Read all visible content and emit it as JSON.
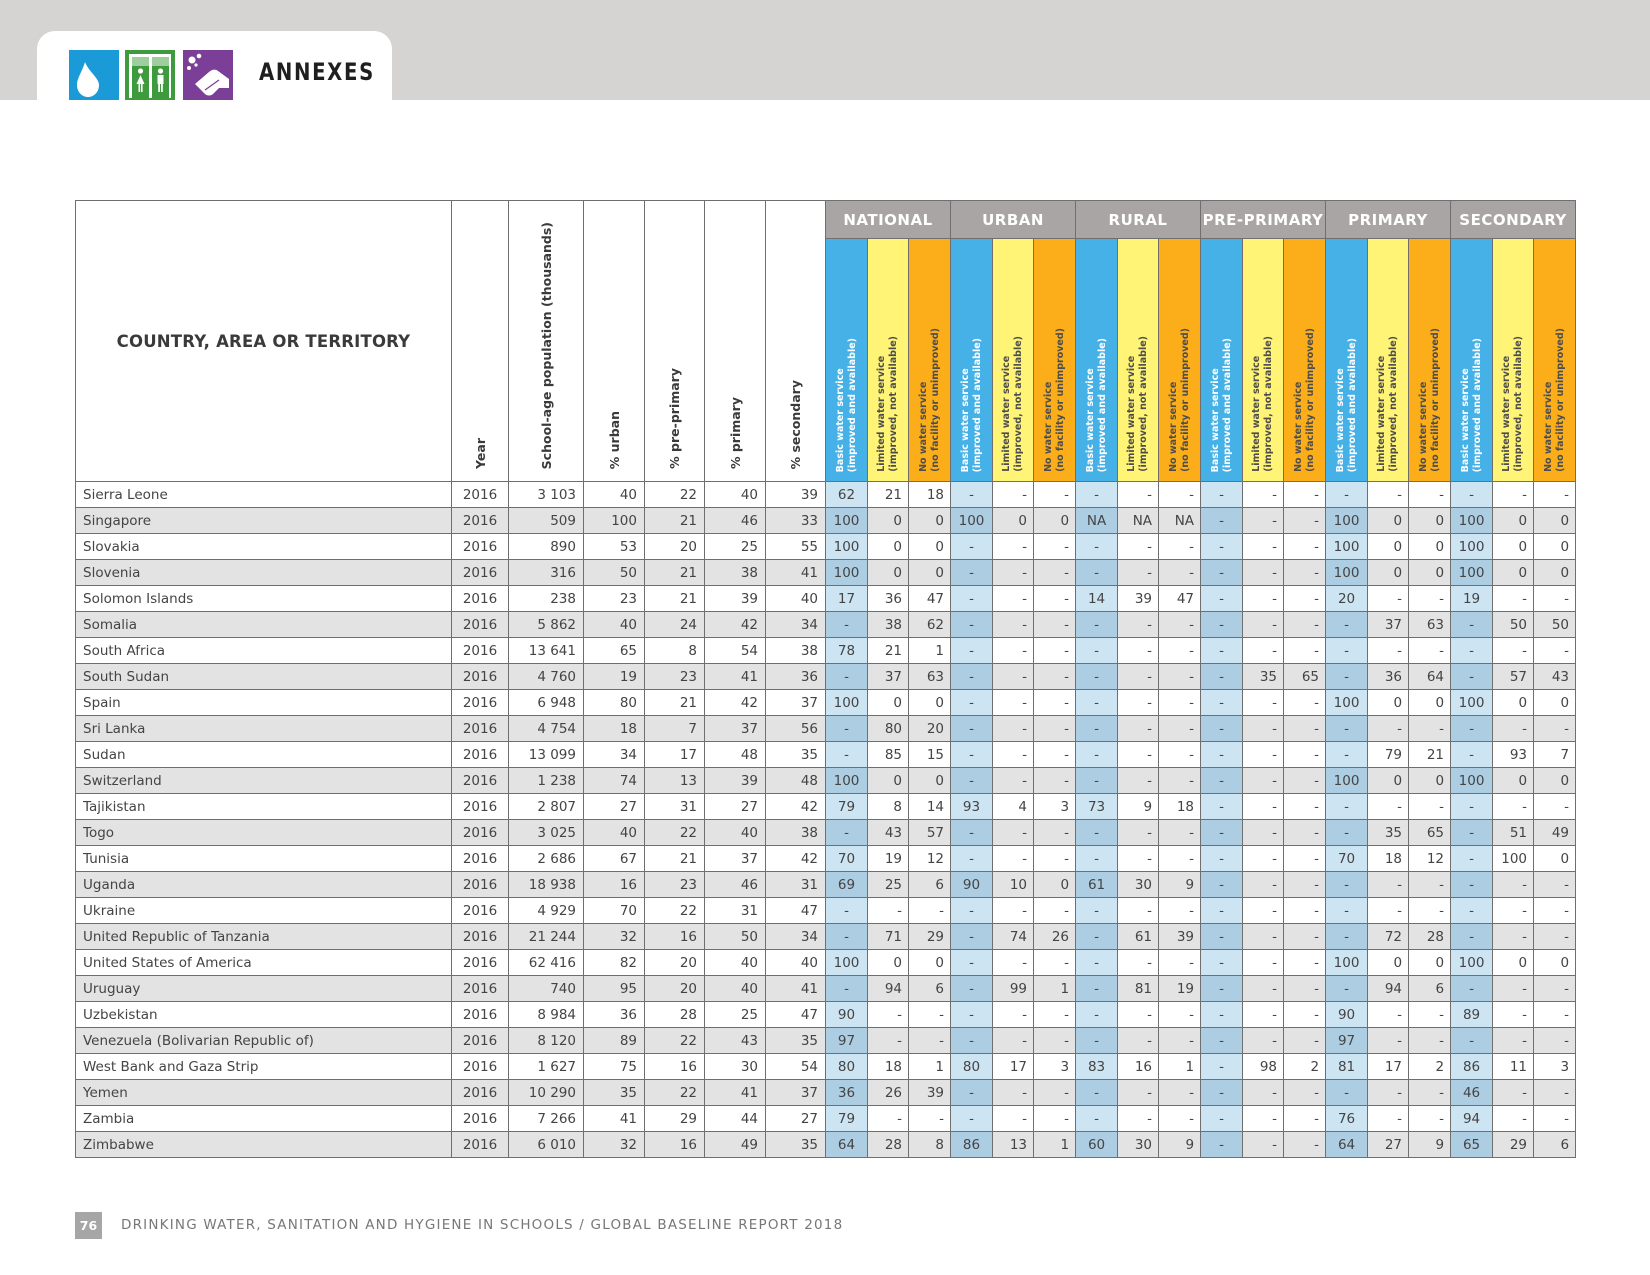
{
  "header": {
    "title": "ANNEXES",
    "icons": [
      "water-drop-icon",
      "toilet-icon",
      "handwashing-icon"
    ],
    "colors": {
      "band": "#d6d3d3",
      "water": "#1a9ad6",
      "sanitation": "#3d9a3d",
      "hygiene": "#7b3f98"
    }
  },
  "table": {
    "country_header": "COUNTRY, AREA OR TERRITORY",
    "columns": {
      "year": "Year",
      "population": "School-age population (thousands)",
      "urban": "% urban",
      "preprimary": "% pre-primary",
      "primary": "% primary",
      "secondary": "% secondary"
    },
    "groups": [
      "NATIONAL",
      "URBAN",
      "RURAL",
      "PRE-PRIMARY",
      "PRIMARY",
      "SECONDARY"
    ],
    "subheaders": {
      "basic_1": "Basic water service",
      "basic_2": "(improved and available)",
      "limited_1": "Limited water service",
      "limited_2": "(improved, not available)",
      "none_1": "No water service",
      "none_2": "(no facility or unimproved)"
    },
    "service_colors": {
      "basic": "#46b1e6",
      "limited": "#fff476",
      "none": "#fbae1a",
      "group": "#a9a5a5"
    },
    "rows": [
      [
        "Sierra Leone",
        "2016",
        "3 103",
        "40",
        "22",
        "40",
        "39",
        "62",
        "21",
        "18",
        "-",
        "-",
        "-",
        "-",
        "-",
        "-",
        "-",
        "-",
        "-",
        "-",
        "-",
        "-",
        "-",
        "-",
        "-"
      ],
      [
        "Singapore",
        "2016",
        "509",
        "100",
        "21",
        "46",
        "33",
        "100",
        "0",
        "0",
        "100",
        "0",
        "0",
        "NA",
        "NA",
        "NA",
        "-",
        "-",
        "-",
        "100",
        "0",
        "0",
        "100",
        "0",
        "0"
      ],
      [
        "Slovakia",
        "2016",
        "890",
        "53",
        "20",
        "25",
        "55",
        "100",
        "0",
        "0",
        "-",
        "-",
        "-",
        "-",
        "-",
        "-",
        "-",
        "-",
        "-",
        "100",
        "0",
        "0",
        "100",
        "0",
        "0"
      ],
      [
        "Slovenia",
        "2016",
        "316",
        "50",
        "21",
        "38",
        "41",
        "100",
        "0",
        "0",
        "-",
        "-",
        "-",
        "-",
        "-",
        "-",
        "-",
        "-",
        "-",
        "100",
        "0",
        "0",
        "100",
        "0",
        "0"
      ],
      [
        "Solomon Islands",
        "2016",
        "238",
        "23",
        "21",
        "39",
        "40",
        "17",
        "36",
        "47",
        "-",
        "-",
        "-",
        "14",
        "39",
        "47",
        "-",
        "-",
        "-",
        "20",
        "-",
        "-",
        "19",
        "-",
        "-"
      ],
      [
        "Somalia",
        "2016",
        "5 862",
        "40",
        "24",
        "42",
        "34",
        "-",
        "38",
        "62",
        "-",
        "-",
        "-",
        "-",
        "-",
        "-",
        "-",
        "-",
        "-",
        "-",
        "37",
        "63",
        "-",
        "50",
        "50"
      ],
      [
        "South Africa",
        "2016",
        "13 641",
        "65",
        "8",
        "54",
        "38",
        "78",
        "21",
        "1",
        "-",
        "-",
        "-",
        "-",
        "-",
        "-",
        "-",
        "-",
        "-",
        "-",
        "-",
        "-",
        "-",
        "-",
        "-"
      ],
      [
        "South Sudan",
        "2016",
        "4 760",
        "19",
        "23",
        "41",
        "36",
        "-",
        "37",
        "63",
        "-",
        "-",
        "-",
        "-",
        "-",
        "-",
        "-",
        "35",
        "65",
        "-",
        "36",
        "64",
        "-",
        "57",
        "43"
      ],
      [
        "Spain",
        "2016",
        "6 948",
        "80",
        "21",
        "42",
        "37",
        "100",
        "0",
        "0",
        "-",
        "-",
        "-",
        "-",
        "-",
        "-",
        "-",
        "-",
        "-",
        "100",
        "0",
        "0",
        "100",
        "0",
        "0"
      ],
      [
        "Sri Lanka",
        "2016",
        "4 754",
        "18",
        "7",
        "37",
        "56",
        "-",
        "80",
        "20",
        "-",
        "-",
        "-",
        "-",
        "-",
        "-",
        "-",
        "-",
        "-",
        "-",
        "-",
        "-",
        "-",
        "-",
        "-"
      ],
      [
        "Sudan",
        "2016",
        "13 099",
        "34",
        "17",
        "48",
        "35",
        "-",
        "85",
        "15",
        "-",
        "-",
        "-",
        "-",
        "-",
        "-",
        "-",
        "-",
        "-",
        "-",
        "79",
        "21",
        "-",
        "93",
        "7"
      ],
      [
        "Switzerland",
        "2016",
        "1 238",
        "74",
        "13",
        "39",
        "48",
        "100",
        "0",
        "0",
        "-",
        "-",
        "-",
        "-",
        "-",
        "-",
        "-",
        "-",
        "-",
        "100",
        "0",
        "0",
        "100",
        "0",
        "0"
      ],
      [
        "Tajikistan",
        "2016",
        "2 807",
        "27",
        "31",
        "27",
        "42",
        "79",
        "8",
        "14",
        "93",
        "4",
        "3",
        "73",
        "9",
        "18",
        "-",
        "-",
        "-",
        "-",
        "-",
        "-",
        "-",
        "-",
        "-"
      ],
      [
        "Togo",
        "2016",
        "3 025",
        "40",
        "22",
        "40",
        "38",
        "-",
        "43",
        "57",
        "-",
        "-",
        "-",
        "-",
        "-",
        "-",
        "-",
        "-",
        "-",
        "-",
        "35",
        "65",
        "-",
        "51",
        "49"
      ],
      [
        "Tunisia",
        "2016",
        "2 686",
        "67",
        "21",
        "37",
        "42",
        "70",
        "19",
        "12",
        "-",
        "-",
        "-",
        "-",
        "-",
        "-",
        "-",
        "-",
        "-",
        "70",
        "18",
        "12",
        "-",
        "100",
        "0"
      ],
      [
        "Uganda",
        "2016",
        "18 938",
        "16",
        "23",
        "46",
        "31",
        "69",
        "25",
        "6",
        "90",
        "10",
        "0",
        "61",
        "30",
        "9",
        "-",
        "-",
        "-",
        "-",
        "-",
        "-",
        "-",
        "-",
        "-"
      ],
      [
        "Ukraine",
        "2016",
        "4 929",
        "70",
        "22",
        "31",
        "47",
        "-",
        "-",
        "-",
        "-",
        "-",
        "-",
        "-",
        "-",
        "-",
        "-",
        "-",
        "-",
        "-",
        "-",
        "-",
        "-",
        "-",
        "-"
      ],
      [
        "United Republic of Tanzania",
        "2016",
        "21 244",
        "32",
        "16",
        "50",
        "34",
        "-",
        "71",
        "29",
        "-",
        "74",
        "26",
        "-",
        "61",
        "39",
        "-",
        "-",
        "-",
        "-",
        "72",
        "28",
        "-",
        "-",
        "-"
      ],
      [
        "United States of America",
        "2016",
        "62 416",
        "82",
        "20",
        "40",
        "40",
        "100",
        "0",
        "0",
        "-",
        "-",
        "-",
        "-",
        "-",
        "-",
        "-",
        "-",
        "-",
        "100",
        "0",
        "0",
        "100",
        "0",
        "0"
      ],
      [
        "Uruguay",
        "2016",
        "740",
        "95",
        "20",
        "40",
        "41",
        "-",
        "94",
        "6",
        "-",
        "99",
        "1",
        "-",
        "81",
        "19",
        "-",
        "-",
        "-",
        "-",
        "94",
        "6",
        "-",
        "-",
        "-"
      ],
      [
        "Uzbekistan",
        "2016",
        "8 984",
        "36",
        "28",
        "25",
        "47",
        "90",
        "-",
        "-",
        "-",
        "-",
        "-",
        "-",
        "-",
        "-",
        "-",
        "-",
        "-",
        "90",
        "-",
        "-",
        "89",
        "-",
        "-"
      ],
      [
        "Venezuela (Bolivarian Republic of)",
        "2016",
        "8 120",
        "89",
        "22",
        "43",
        "35",
        "97",
        "-",
        "-",
        "-",
        "-",
        "-",
        "-",
        "-",
        "-",
        "-",
        "-",
        "-",
        "97",
        "-",
        "-",
        "-",
        "-",
        "-"
      ],
      [
        "West Bank and Gaza Strip",
        "2016",
        "1 627",
        "75",
        "16",
        "30",
        "54",
        "80",
        "18",
        "1",
        "80",
        "17",
        "3",
        "83",
        "16",
        "1",
        "-",
        "98",
        "2",
        "81",
        "17",
        "2",
        "86",
        "11",
        "3"
      ],
      [
        "Yemen",
        "2016",
        "10 290",
        "35",
        "22",
        "41",
        "37",
        "36",
        "26",
        "39",
        "-",
        "-",
        "-",
        "-",
        "-",
        "-",
        "-",
        "-",
        "-",
        "-",
        "-",
        "-",
        "46",
        "-",
        "-"
      ],
      [
        "Zambia",
        "2016",
        "7 266",
        "41",
        "29",
        "44",
        "27",
        "79",
        "-",
        "-",
        "-",
        "-",
        "-",
        "-",
        "-",
        "-",
        "-",
        "-",
        "-",
        "76",
        "-",
        "-",
        "94",
        "-",
        "-"
      ],
      [
        "Zimbabwe",
        "2016",
        "6 010",
        "32",
        "16",
        "49",
        "35",
        "64",
        "28",
        "8",
        "86",
        "13",
        "1",
        "60",
        "30",
        "9",
        "-",
        "-",
        "-",
        "64",
        "27",
        "9",
        "65",
        "29",
        "6"
      ]
    ]
  },
  "footer": {
    "page_number": "76",
    "text": "DRINKING WATER, SANITATION AND HYGIENE IN SCHOOLS / GLOBAL BASELINE REPORT 2018"
  }
}
